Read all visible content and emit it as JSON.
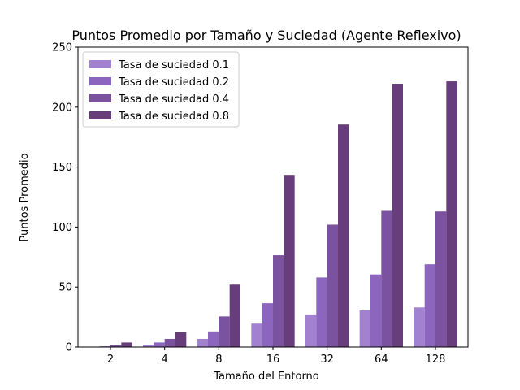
{
  "chart_data": {
    "type": "bar",
    "title": "Puntos Promedio por Tamaño y Suciedad (Agente Reflexivo)",
    "xlabel": "Tamaño del Entorno",
    "ylabel": "Puntos Promedio",
    "ylim": [
      0,
      250
    ],
    "yticks": [
      0,
      50,
      100,
      150,
      200,
      250
    ],
    "categories": [
      "2",
      "4",
      "8",
      "16",
      "32",
      "64",
      "128"
    ],
    "legend_position": "top-left",
    "grid": false,
    "series": [
      {
        "name": "Tasa de suciedad 0.1",
        "color": "#a281d1",
        "values": [
          0.3,
          1.8,
          6.8,
          19.5,
          26.5,
          30.5,
          33.0
        ]
      },
      {
        "name": "Tasa de suciedad 0.2",
        "color": "#8c66be",
        "values": [
          0.6,
          3.8,
          13.0,
          36.5,
          58.0,
          60.5,
          69.0
        ]
      },
      {
        "name": "Tasa de suciedad 0.4",
        "color": "#7b529f",
        "values": [
          1.8,
          6.8,
          25.5,
          76.5,
          102.0,
          113.5,
          113.0
        ]
      },
      {
        "name": "Tasa de suciedad 0.8",
        "color": "#673e7b",
        "values": [
          3.8,
          12.5,
          52.0,
          143.5,
          185.5,
          219.5,
          221.5
        ]
      }
    ]
  }
}
